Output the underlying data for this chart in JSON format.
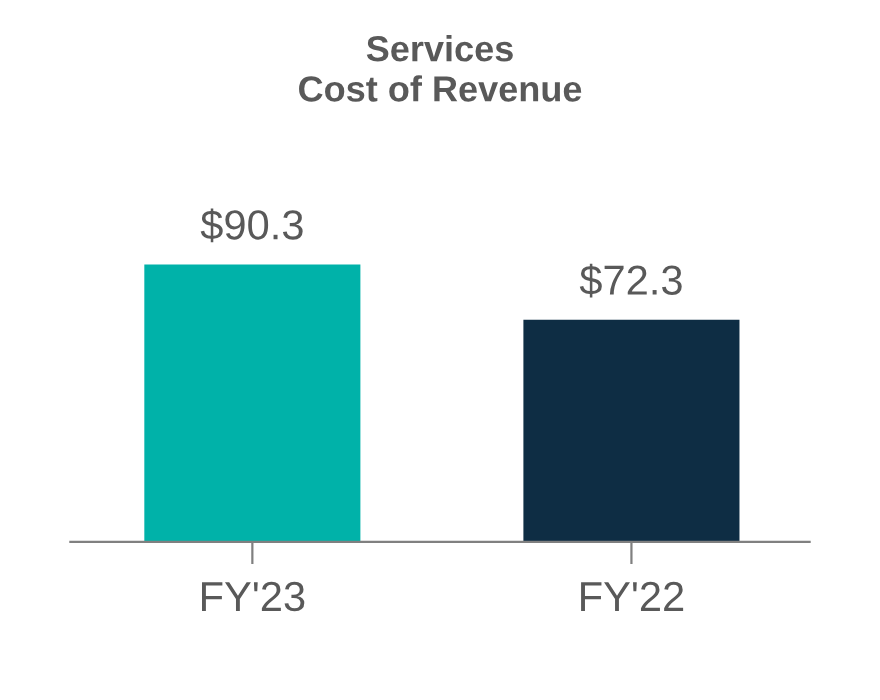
{
  "chart_data": {
    "type": "bar",
    "title": "Services\nCost of Revenue",
    "categories": [
      "FY'23",
      "FY'22"
    ],
    "values": [
      90.3,
      72.3
    ],
    "colors": [
      "#00b2a9",
      "#0e2d44"
    ],
    "value_labels": [
      "$90.3",
      "$72.3"
    ],
    "grid": false,
    "legend": false
  }
}
